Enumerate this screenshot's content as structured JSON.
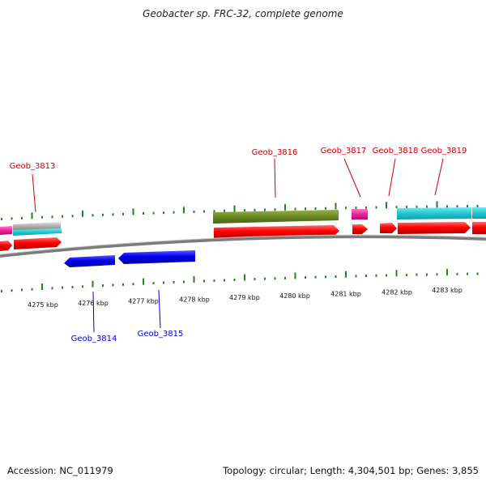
{
  "title": "Geobacter sp. FRC-32, complete genome",
  "footer": {
    "accession": "Accession: NC_011979",
    "info": "Topology: circular; Length: 4,304,501 bp; Genes: 3,855"
  },
  "colors": {
    "forward_label": "#cc0000",
    "reverse_label": "#0000cc",
    "backbone": "#8a8a8a",
    "tick": "#1a8a1a"
  },
  "scale_labels": [
    "4275 kbp",
    "4276 kbp",
    "4277 kbp",
    "4278 kbp",
    "4279 kbp",
    "4280 kbp",
    "4281 kbp",
    "4282 kbp",
    "4283 kbp"
  ],
  "genes": [
    {
      "name": "Geob_3813",
      "strand": "forward"
    },
    {
      "name": "Geob_3814",
      "strand": "reverse"
    },
    {
      "name": "Geob_3815",
      "strand": "reverse"
    },
    {
      "name": "Geob_3816",
      "strand": "forward"
    },
    {
      "name": "Geob_3817",
      "strand": "forward"
    },
    {
      "name": "Geob_3818",
      "strand": "forward"
    },
    {
      "name": "Geob_3819",
      "strand": "forward"
    }
  ]
}
